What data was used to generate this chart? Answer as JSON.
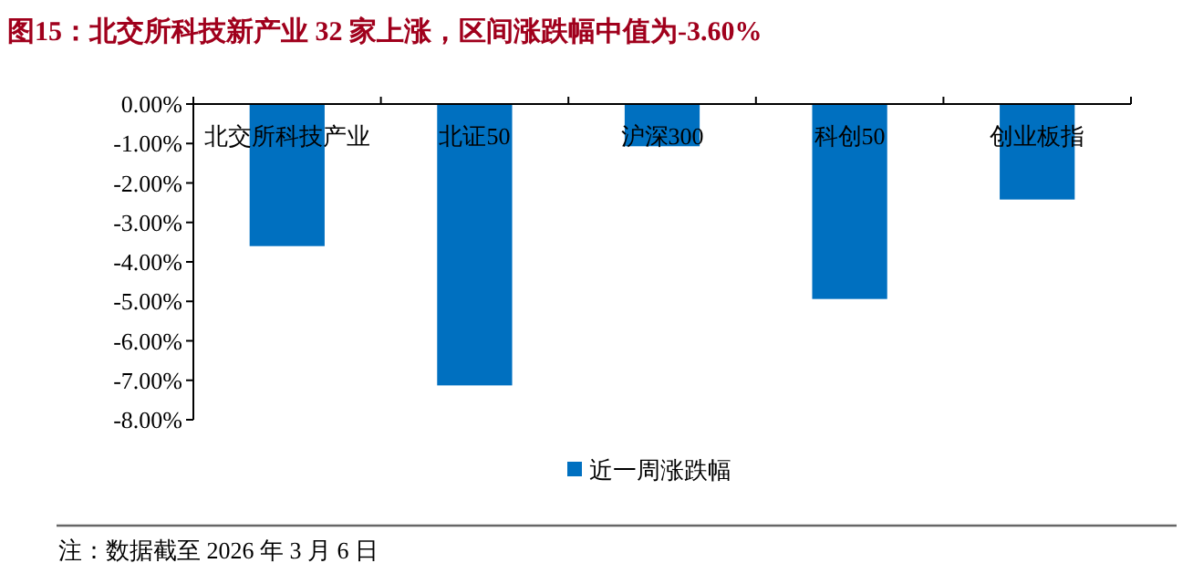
{
  "chart_data": {
    "type": "bar",
    "title": "图15：北交所科技新产业 32 家上涨，区间涨跌幅中值为-3.60%",
    "categories": [
      "北交所科技产业",
      "北证50",
      "沪深300",
      "科创50",
      "创业板指"
    ],
    "series": [
      {
        "name": "近一周涨跌幅",
        "color": "#0070c0",
        "values": [
          -3.6,
          -7.13,
          -1.07,
          -4.94,
          -2.42
        ]
      }
    ],
    "ylim": [
      -8,
      0
    ],
    "yticks": [
      {
        "value": 0,
        "label": "0.00%"
      },
      {
        "value": -1,
        "label": "-1.00%"
      },
      {
        "value": -2,
        "label": "-2.00%"
      },
      {
        "value": -3,
        "label": "-3.00%"
      },
      {
        "value": -4,
        "label": "-4.00%"
      },
      {
        "value": -5,
        "label": "-5.00%"
      },
      {
        "value": -6,
        "label": "-6.00%"
      },
      {
        "value": -7,
        "label": "-7.00%"
      },
      {
        "value": -8,
        "label": "-8.00%"
      }
    ],
    "legend": "bottom",
    "grid": false,
    "annotations": [
      "注：数据截至 2026 年 3 月 6 日"
    ]
  }
}
